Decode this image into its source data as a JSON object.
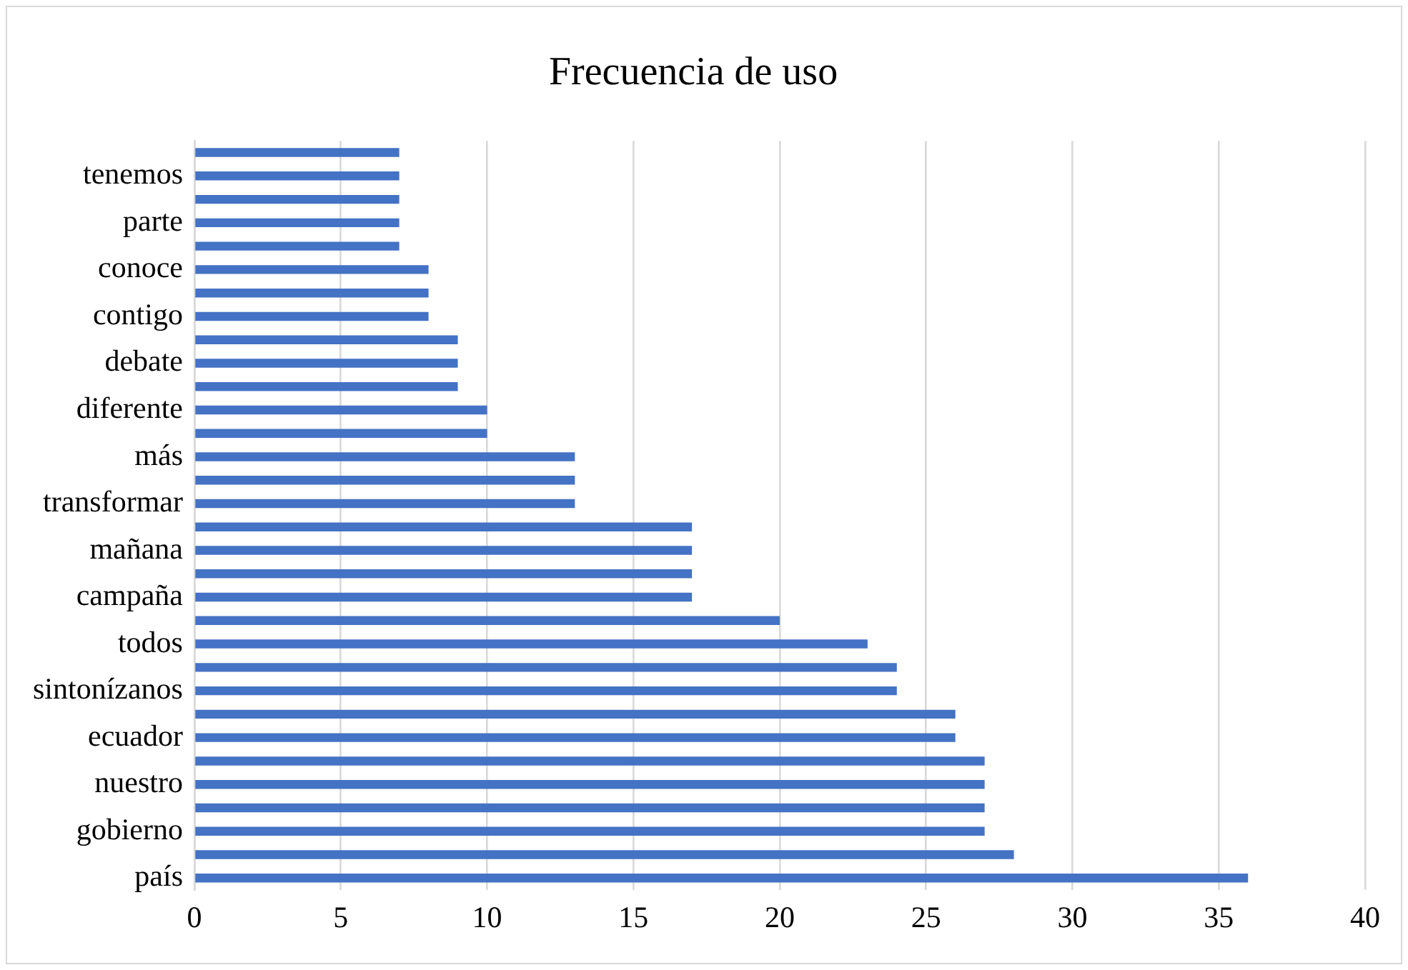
{
  "chart_data": {
    "type": "bar",
    "orientation": "horizontal",
    "title": "Frecuencia de uso",
    "categories": [
      null,
      "tenemos",
      null,
      "parte",
      null,
      "conoce",
      null,
      "contigo",
      null,
      "debate",
      null,
      "diferente",
      null,
      "más",
      null,
      "transformar",
      null,
      "mañana",
      null,
      "campaña",
      null,
      "todos",
      null,
      "sintonízanos",
      null,
      "ecuador",
      null,
      "nuestro",
      null,
      "gobierno",
      null,
      "país"
    ],
    "values": [
      7,
      7,
      7,
      7,
      7,
      8,
      8,
      8,
      9,
      9,
      9,
      10,
      10,
      13,
      13,
      13,
      17,
      17,
      17,
      17,
      20,
      23,
      24,
      24,
      26,
      26,
      27,
      27,
      27,
      27,
      28,
      36
    ],
    "color": "#4472c4",
    "xlim": [
      0,
      40
    ],
    "xticks": [
      0,
      5,
      10,
      15,
      20,
      25,
      30,
      35,
      40
    ],
    "grid": "x",
    "legend": false
  }
}
